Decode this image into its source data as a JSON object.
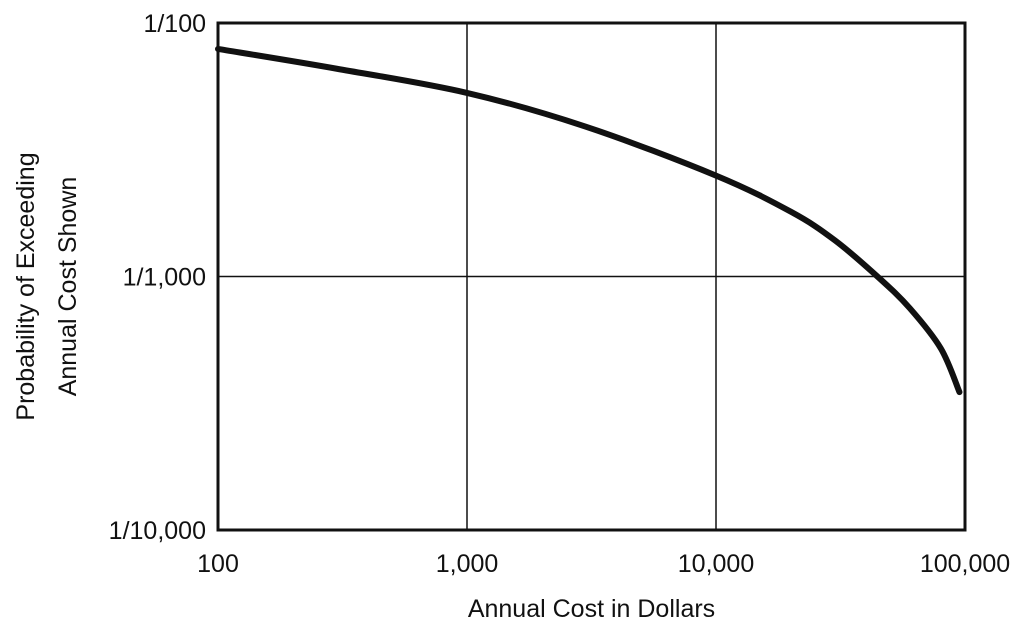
{
  "chart_data": {
    "type": "line",
    "title": "",
    "xlabel": "Annual Cost in Dollars",
    "ylabel_lines": [
      "Probability of Exceeding",
      "Annual Cost Shown"
    ],
    "x_scale": "log",
    "y_scale": "log",
    "xlim": [
      100,
      100000
    ],
    "ylim": [
      0.0001,
      0.01
    ],
    "grid": true,
    "x_ticks": [
      {
        "value": 100,
        "label": "100"
      },
      {
        "value": 1000,
        "label": "1,000"
      },
      {
        "value": 10000,
        "label": "10,000"
      },
      {
        "value": 100000,
        "label": "100,000"
      }
    ],
    "y_ticks": [
      {
        "value": 0.01,
        "label": "1/100"
      },
      {
        "value": 0.001,
        "label": "1/1,000"
      },
      {
        "value": 0.0001,
        "label": "1/10,000"
      }
    ],
    "series": [
      {
        "color": "#111111",
        "x": [
          100,
          300,
          1000,
          3000,
          10000,
          20000,
          30000,
          45000,
          60000,
          80000,
          95000
        ],
        "y": [
          0.0079,
          0.0066,
          0.0053,
          0.0039,
          0.0025,
          0.0018,
          0.00139,
          0.00099,
          0.00075,
          0.00052,
          0.00035
        ]
      }
    ]
  }
}
